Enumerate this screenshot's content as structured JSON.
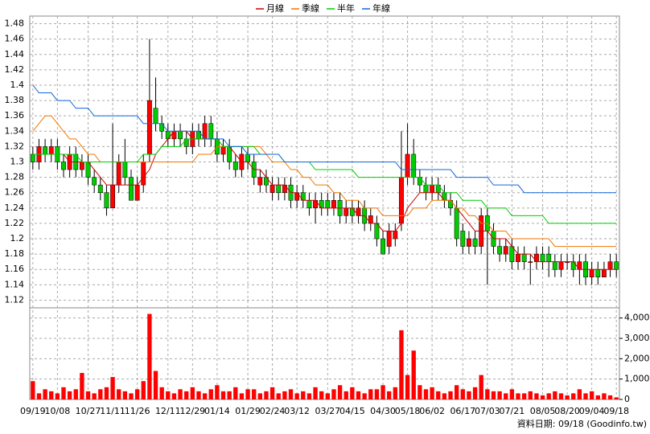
{
  "chart_data": {
    "type": "candlestick",
    "footnote": "資料日期: 09/18 (Goodinfo.tw)",
    "grid": true,
    "up_color": "#ff0000",
    "down_color": "#00cc00",
    "ylim": [
      1.11,
      1.49
    ],
    "yticks": [
      1.12,
      1.14,
      1.16,
      1.18,
      1.2,
      1.22,
      1.24,
      1.26,
      1.28,
      1.3,
      1.32,
      1.34,
      1.36,
      1.38,
      1.4,
      1.42,
      1.44,
      1.46,
      1.48
    ],
    "categories": [
      "09/19",
      null,
      null,
      null,
      "10/08",
      null,
      null,
      null,
      null,
      "10/27",
      null,
      null,
      null,
      "11/11",
      null,
      null,
      null,
      "11/26",
      null,
      null,
      null,
      null,
      "12/11",
      null,
      null,
      null,
      "12/29",
      null,
      null,
      null,
      "01/14",
      null,
      null,
      null,
      null,
      "01/29",
      null,
      null,
      null,
      "02/24",
      null,
      null,
      null,
      "03/12",
      null,
      null,
      null,
      null,
      "03/27",
      null,
      null,
      null,
      "04/15",
      null,
      null,
      null,
      null,
      "04/30",
      null,
      null,
      null,
      "05/18",
      null,
      null,
      null,
      "06/02",
      null,
      null,
      null,
      null,
      "06/17",
      null,
      null,
      null,
      "07/03",
      null,
      null,
      null,
      "07/21",
      null,
      null,
      null,
      null,
      "08/05",
      null,
      null,
      null,
      "08/20",
      null,
      null,
      null,
      "09/04",
      null,
      null,
      null,
      "09/18"
    ],
    "open": [
      1.31,
      1.3,
      1.32,
      1.31,
      1.32,
      1.3,
      1.29,
      1.31,
      1.29,
      1.3,
      1.28,
      1.27,
      1.26,
      1.24,
      1.27,
      1.3,
      1.28,
      1.25,
      1.27,
      1.31,
      1.37,
      1.35,
      1.34,
      1.33,
      1.34,
      1.33,
      1.32,
      1.34,
      1.33,
      1.35,
      1.33,
      1.31,
      1.32,
      1.3,
      1.29,
      1.31,
      1.3,
      1.27,
      1.28,
      1.26,
      1.27,
      1.26,
      1.27,
      1.25,
      1.26,
      1.25,
      1.24,
      1.25,
      1.25,
      1.24,
      1.25,
      1.23,
      1.24,
      1.23,
      1.24,
      1.22,
      1.22,
      1.2,
      1.19,
      1.2,
      1.22,
      1.28,
      1.31,
      1.28,
      1.27,
      1.26,
      1.27,
      1.26,
      1.25,
      1.24,
      1.21,
      1.19,
      1.2,
      1.19,
      1.23,
      1.21,
      1.19,
      1.18,
      1.19,
      1.17,
      1.18,
      1.17,
      1.17,
      1.18,
      1.18,
      1.17,
      1.16,
      1.17,
      1.17,
      1.16,
      1.17,
      1.15,
      1.16,
      1.15,
      1.16,
      1.17
    ],
    "high": [
      1.32,
      1.33,
      1.33,
      1.33,
      1.33,
      1.31,
      1.32,
      1.32,
      1.31,
      1.31,
      1.29,
      1.28,
      1.27,
      1.35,
      1.31,
      1.33,
      1.29,
      1.28,
      1.31,
      1.46,
      1.41,
      1.36,
      1.35,
      1.35,
      1.35,
      1.34,
      1.35,
      1.35,
      1.36,
      1.36,
      1.34,
      1.33,
      1.33,
      1.31,
      1.32,
      1.32,
      1.31,
      1.29,
      1.29,
      1.28,
      1.28,
      1.28,
      1.28,
      1.27,
      1.27,
      1.26,
      1.26,
      1.26,
      1.26,
      1.26,
      1.26,
      1.25,
      1.25,
      1.25,
      1.25,
      1.24,
      1.23,
      1.21,
      1.22,
      1.22,
      1.34,
      1.35,
      1.33,
      1.29,
      1.28,
      1.28,
      1.28,
      1.27,
      1.26,
      1.25,
      1.22,
      1.21,
      1.21,
      1.24,
      1.24,
      1.22,
      1.2,
      1.2,
      1.2,
      1.19,
      1.19,
      1.18,
      1.19,
      1.19,
      1.19,
      1.18,
      1.18,
      1.18,
      1.18,
      1.18,
      1.18,
      1.17,
      1.17,
      1.17,
      1.18,
      1.18
    ],
    "low": [
      1.29,
      1.29,
      1.3,
      1.3,
      1.29,
      1.28,
      1.28,
      1.28,
      1.28,
      1.27,
      1.26,
      1.25,
      1.23,
      1.24,
      1.26,
      1.27,
      1.25,
      1.25,
      1.26,
      1.3,
      1.34,
      1.33,
      1.32,
      1.32,
      1.32,
      1.31,
      1.31,
      1.32,
      1.32,
      1.32,
      1.3,
      1.3,
      1.29,
      1.28,
      1.28,
      1.29,
      1.27,
      1.26,
      1.26,
      1.25,
      1.25,
      1.25,
      1.24,
      1.24,
      1.24,
      1.23,
      1.22,
      1.23,
      1.23,
      1.23,
      1.22,
      1.22,
      1.22,
      1.22,
      1.21,
      1.21,
      1.19,
      1.18,
      1.18,
      1.19,
      1.21,
      1.27,
      1.27,
      1.26,
      1.25,
      1.25,
      1.25,
      1.24,
      1.23,
      1.19,
      1.18,
      1.18,
      1.18,
      1.18,
      1.14,
      1.18,
      1.17,
      1.17,
      1.16,
      1.16,
      1.16,
      1.14,
      1.16,
      1.16,
      1.15,
      1.15,
      1.15,
      1.16,
      1.15,
      1.14,
      1.14,
      1.14,
      1.14,
      1.15,
      1.15,
      1.15
    ],
    "close": [
      1.3,
      1.32,
      1.31,
      1.32,
      1.3,
      1.29,
      1.31,
      1.29,
      1.3,
      1.28,
      1.27,
      1.26,
      1.24,
      1.27,
      1.3,
      1.28,
      1.25,
      1.27,
      1.3,
      1.38,
      1.35,
      1.34,
      1.33,
      1.34,
      1.33,
      1.32,
      1.34,
      1.33,
      1.35,
      1.33,
      1.31,
      1.32,
      1.3,
      1.29,
      1.31,
      1.3,
      1.28,
      1.28,
      1.27,
      1.27,
      1.26,
      1.27,
      1.25,
      1.26,
      1.25,
      1.24,
      1.25,
      1.24,
      1.24,
      1.25,
      1.23,
      1.24,
      1.23,
      1.24,
      1.22,
      1.23,
      1.2,
      1.18,
      1.21,
      1.21,
      1.28,
      1.31,
      1.28,
      1.27,
      1.26,
      1.27,
      1.26,
      1.25,
      1.24,
      1.2,
      1.19,
      1.2,
      1.19,
      1.23,
      1.21,
      1.19,
      1.18,
      1.19,
      1.17,
      1.18,
      1.17,
      1.17,
      1.18,
      1.17,
      1.17,
      1.16,
      1.17,
      1.17,
      1.16,
      1.17,
      1.15,
      1.16,
      1.15,
      1.16,
      1.17,
      1.16
    ],
    "lines": [
      {
        "name": "月線",
        "color": "#cc0000",
        "values": [
          1.31,
          1.31,
          1.31,
          1.31,
          1.31,
          1.31,
          1.3,
          1.3,
          1.3,
          1.3,
          1.29,
          1.28,
          1.27,
          1.27,
          1.27,
          1.27,
          1.27,
          1.27,
          1.28,
          1.29,
          1.31,
          1.32,
          1.33,
          1.34,
          1.34,
          1.34,
          1.33,
          1.33,
          1.33,
          1.33,
          1.33,
          1.32,
          1.32,
          1.31,
          1.3,
          1.3,
          1.29,
          1.29,
          1.28,
          1.27,
          1.27,
          1.27,
          1.26,
          1.26,
          1.25,
          1.25,
          1.25,
          1.24,
          1.24,
          1.24,
          1.24,
          1.24,
          1.24,
          1.23,
          1.23,
          1.22,
          1.22,
          1.21,
          1.21,
          1.21,
          1.22,
          1.24,
          1.25,
          1.26,
          1.26,
          1.26,
          1.26,
          1.25,
          1.25,
          1.24,
          1.23,
          1.22,
          1.21,
          1.21,
          1.21,
          1.2,
          1.2,
          1.2,
          1.19,
          1.18,
          1.18,
          1.18,
          1.17,
          1.17,
          1.17,
          1.17,
          1.17,
          1.17,
          1.17,
          1.16,
          1.16,
          1.16,
          1.16,
          1.16,
          1.16,
          1.16
        ]
      },
      {
        "name": "季線",
        "color": "#ee7700",
        "values": [
          1.34,
          1.35,
          1.36,
          1.36,
          1.35,
          1.34,
          1.33,
          1.33,
          1.32,
          1.31,
          1.31,
          1.3,
          1.3,
          1.3,
          1.3,
          1.3,
          1.3,
          1.3,
          1.3,
          1.3,
          1.3,
          1.3,
          1.3,
          1.3,
          1.3,
          1.3,
          1.3,
          1.31,
          1.31,
          1.31,
          1.32,
          1.32,
          1.32,
          1.32,
          1.32,
          1.32,
          1.32,
          1.32,
          1.31,
          1.3,
          1.3,
          1.3,
          1.29,
          1.29,
          1.28,
          1.28,
          1.27,
          1.27,
          1.27,
          1.26,
          1.26,
          1.25,
          1.25,
          1.25,
          1.24,
          1.24,
          1.24,
          1.23,
          1.23,
          1.23,
          1.23,
          1.23,
          1.24,
          1.24,
          1.24,
          1.25,
          1.25,
          1.25,
          1.25,
          1.24,
          1.24,
          1.23,
          1.23,
          1.22,
          1.22,
          1.21,
          1.21,
          1.21,
          1.2,
          1.2,
          1.2,
          1.2,
          1.2,
          1.2,
          1.2,
          1.19,
          1.19,
          1.19,
          1.19,
          1.19,
          1.19,
          1.19,
          1.19,
          1.19,
          1.19,
          1.19
        ]
      },
      {
        "name": "半年",
        "color": "#00cc00",
        "values": [
          1.31,
          1.31,
          1.31,
          1.31,
          1.31,
          1.31,
          1.31,
          1.31,
          1.3,
          1.3,
          1.3,
          1.3,
          1.3,
          1.3,
          1.3,
          1.3,
          1.3,
          1.3,
          1.31,
          1.31,
          1.31,
          1.32,
          1.32,
          1.32,
          1.32,
          1.33,
          1.33,
          1.33,
          1.33,
          1.33,
          1.33,
          1.32,
          1.32,
          1.32,
          1.32,
          1.32,
          1.32,
          1.31,
          1.31,
          1.31,
          1.31,
          1.3,
          1.3,
          1.3,
          1.3,
          1.3,
          1.29,
          1.29,
          1.29,
          1.29,
          1.29,
          1.29,
          1.29,
          1.28,
          1.28,
          1.28,
          1.28,
          1.28,
          1.28,
          1.28,
          1.28,
          1.28,
          1.28,
          1.28,
          1.27,
          1.27,
          1.27,
          1.26,
          1.26,
          1.26,
          1.25,
          1.25,
          1.25,
          1.25,
          1.24,
          1.24,
          1.24,
          1.24,
          1.23,
          1.23,
          1.23,
          1.23,
          1.23,
          1.23,
          1.22,
          1.22,
          1.22,
          1.22,
          1.22,
          1.22,
          1.22,
          1.22,
          1.22,
          1.22,
          1.22,
          1.22
        ]
      },
      {
        "name": "年線",
        "color": "#1166dd",
        "values": [
          1.4,
          1.39,
          1.39,
          1.39,
          1.38,
          1.38,
          1.38,
          1.37,
          1.37,
          1.37,
          1.36,
          1.36,
          1.36,
          1.36,
          1.36,
          1.36,
          1.36,
          1.36,
          1.35,
          1.35,
          1.35,
          1.35,
          1.34,
          1.34,
          1.34,
          1.34,
          1.34,
          1.34,
          1.33,
          1.33,
          1.33,
          1.33,
          1.32,
          1.32,
          1.32,
          1.31,
          1.31,
          1.31,
          1.31,
          1.31,
          1.31,
          1.3,
          1.3,
          1.3,
          1.3,
          1.3,
          1.3,
          1.3,
          1.3,
          1.3,
          1.3,
          1.3,
          1.3,
          1.3,
          1.3,
          1.3,
          1.3,
          1.3,
          1.3,
          1.3,
          1.29,
          1.29,
          1.29,
          1.29,
          1.29,
          1.29,
          1.29,
          1.29,
          1.29,
          1.28,
          1.28,
          1.28,
          1.28,
          1.28,
          1.28,
          1.27,
          1.27,
          1.27,
          1.27,
          1.27,
          1.26,
          1.26,
          1.26,
          1.26,
          1.26,
          1.26,
          1.26,
          1.26,
          1.26,
          1.26,
          1.26,
          1.26,
          1.26,
          1.26,
          1.26,
          1.26
        ]
      }
    ],
    "volume": {
      "color": "#ff0000",
      "ylim": [
        0,
        4500
      ],
      "yticks": [
        0,
        {
          "value": 1000,
          "label": "1,000"
        },
        {
          "value": 2000,
          "label": "2,000"
        },
        {
          "value": 3000,
          "label": "3,000"
        },
        {
          "value": 4000,
          "label": "4,000"
        }
      ],
      "values": [
        900,
        300,
        500,
        400,
        300,
        600,
        400,
        500,
        1300,
        400,
        300,
        500,
        600,
        1100,
        500,
        400,
        300,
        500,
        900,
        4200,
        1400,
        600,
        400,
        300,
        500,
        400,
        600,
        400,
        300,
        500,
        700,
        400,
        400,
        600,
        300,
        500,
        500,
        300,
        400,
        600,
        300,
        400,
        500,
        300,
        400,
        300,
        600,
        400,
        300,
        500,
        700,
        400,
        600,
        400,
        300,
        500,
        500,
        700,
        400,
        600,
        3400,
        1200,
        2400,
        700,
        500,
        600,
        400,
        300,
        400,
        700,
        500,
        400,
        600,
        1200,
        500,
        400,
        400,
        300,
        500,
        300,
        300,
        400,
        300,
        200,
        300,
        400,
        300,
        200,
        300,
        500,
        300,
        400,
        200,
        300,
        200,
        100
      ]
    }
  }
}
